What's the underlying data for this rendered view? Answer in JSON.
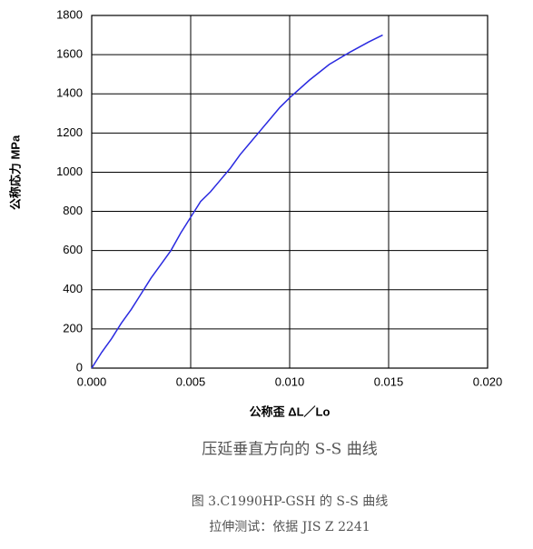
{
  "chart_data": {
    "type": "line",
    "x_label": "公称歪 ΔL／Lo",
    "y_label": "公称応力 MPa",
    "subtitle": "压延垂直方向的 S-S 曲线",
    "x": [
      0,
      0.0005,
      0.001,
      0.0015,
      0.002,
      0.0025,
      0.003,
      0.0035,
      0.004,
      0.0045,
      0.005,
      0.0055,
      0.006,
      0.0065,
      0.007,
      0.0075,
      0.008,
      0.0085,
      0.009,
      0.0095,
      0.01,
      0.011,
      0.012,
      0.013,
      0.014,
      0.0147
    ],
    "series": [
      {
        "name": "S-S",
        "color": "#2a2ae0",
        "values": [
          0,
          80,
          150,
          230,
          300,
          380,
          460,
          530,
          600,
          690,
          770,
          850,
          900,
          960,
          1020,
          1090,
          1150,
          1210,
          1270,
          1330,
          1380,
          1470,
          1550,
          1610,
          1665,
          1700
        ]
      }
    ],
    "xlim": [
      0,
      0.02
    ],
    "xticks": [
      {
        "value": 0,
        "label": "0.000"
      },
      {
        "value": 0.005,
        "label": "0.005"
      },
      {
        "value": 0.01,
        "label": "0.010"
      },
      {
        "value": 0.015,
        "label": "0.015"
      },
      {
        "value": 0.02,
        "label": "0.020"
      }
    ],
    "ylim": [
      0,
      1800
    ],
    "yticks": [
      0,
      200,
      400,
      600,
      800,
      1000,
      1200,
      1400,
      1600,
      1800
    ],
    "grid": true
  },
  "captions": [
    "图 3.C1990HP-GSH 的 S-S 曲线",
    "拉伸测试：依据 JIS Z 2241"
  ]
}
